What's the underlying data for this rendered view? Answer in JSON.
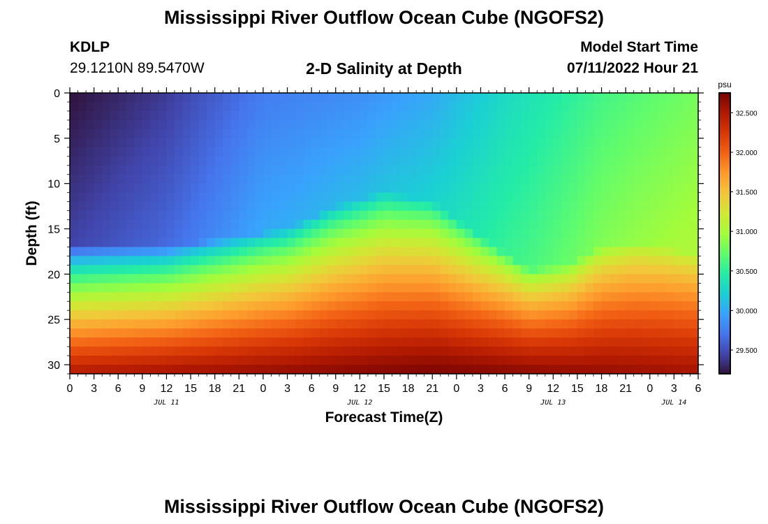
{
  "page": {
    "title": "Mississippi River Outflow Ocean Cube (NGOFS2)",
    "footer_title": "Mississippi River Outflow Ocean Cube (NGOFS2)"
  },
  "station": {
    "id": "KDLP",
    "coords": "29.1210N  89.5470W"
  },
  "model": {
    "label": "Model Start Time",
    "start": "07/11/2022 Hour 21"
  },
  "chart_data": {
    "type": "heatmap",
    "title": "2-D Salinity at Depth",
    "xlabel": "Forecast Time(Z)",
    "ylabel": "Depth (ft)",
    "x_unit": "hours since 07/11/2022 00Z",
    "xlim": [
      0,
      78
    ],
    "ylim": [
      0,
      31
    ],
    "y_inverted": true,
    "x_ticks": [
      0,
      3,
      6,
      9,
      12,
      15,
      18,
      21,
      24,
      27,
      30,
      33,
      36,
      39,
      42,
      45,
      48,
      51,
      54,
      57,
      60,
      63,
      66,
      69,
      72,
      75,
      78
    ],
    "x_tick_labels": [
      "0",
      "3",
      "6",
      "9",
      "12",
      "15",
      "18",
      "21",
      "0",
      "3",
      "6",
      "9",
      "12",
      "15",
      "18",
      "21",
      "0",
      "3",
      "6",
      "9",
      "12",
      "15",
      "18",
      "21",
      "0",
      "3",
      "6"
    ],
    "date_labels": [
      {
        "x": 12,
        "text": "JUL 11"
      },
      {
        "x": 36,
        "text": "JUL 12"
      },
      {
        "x": 60,
        "text": "JUL 13"
      },
      {
        "x": 75,
        "text": "JUL 14"
      }
    ],
    "y_ticks": [
      0,
      5,
      10,
      15,
      20,
      25,
      30
    ],
    "y_tick_labels": [
      "0",
      "5",
      "10",
      "15",
      "20",
      "25",
      "30"
    ],
    "colorbar": {
      "unit": "psu",
      "min": 29.2,
      "max": 32.75,
      "ticks": [
        29.5,
        30.0,
        30.5,
        31.0,
        31.5,
        32.0,
        32.5
      ],
      "tick_labels": [
        "29.500",
        "30.000",
        "30.500",
        "31.000",
        "31.500",
        "32.000",
        "32.500"
      ],
      "colors": [
        "#30123b",
        "#4145ab",
        "#4675ed",
        "#39a2fc",
        "#1bcfd4",
        "#24eca6",
        "#61fc6c",
        "#a4fc3b",
        "#d1e834",
        "#f3c63a",
        "#fe9b2d",
        "#f36315",
        "#d93806",
        "#b11901",
        "#7a0402"
      ]
    },
    "surface_salinity_profile": [
      {
        "t": 0,
        "s": 29.2
      },
      {
        "t": 12,
        "s": 29.4
      },
      {
        "t": 24,
        "s": 29.75
      },
      {
        "t": 36,
        "s": 29.85
      },
      {
        "t": 45,
        "s": 30.0
      },
      {
        "t": 54,
        "s": 30.3
      },
      {
        "t": 66,
        "s": 30.6
      },
      {
        "t": 78,
        "s": 30.8
      }
    ],
    "halocline_depth_ft": [
      {
        "t": 0,
        "d": 23
      },
      {
        "t": 12,
        "d": 23
      },
      {
        "t": 20,
        "d": 22
      },
      {
        "t": 27,
        "d": 21
      },
      {
        "t": 33,
        "d": 18.5
      },
      {
        "t": 39,
        "d": 17
      },
      {
        "t": 45,
        "d": 18
      },
      {
        "t": 51,
        "d": 22
      },
      {
        "t": 57,
        "d": 25.5
      },
      {
        "t": 62,
        "d": 25
      },
      {
        "t": 66,
        "d": 23
      },
      {
        "t": 70,
        "d": 22.5
      },
      {
        "t": 74,
        "d": 23
      },
      {
        "t": 78,
        "d": 24
      }
    ],
    "bottom_salinity_max": 32.75
  }
}
